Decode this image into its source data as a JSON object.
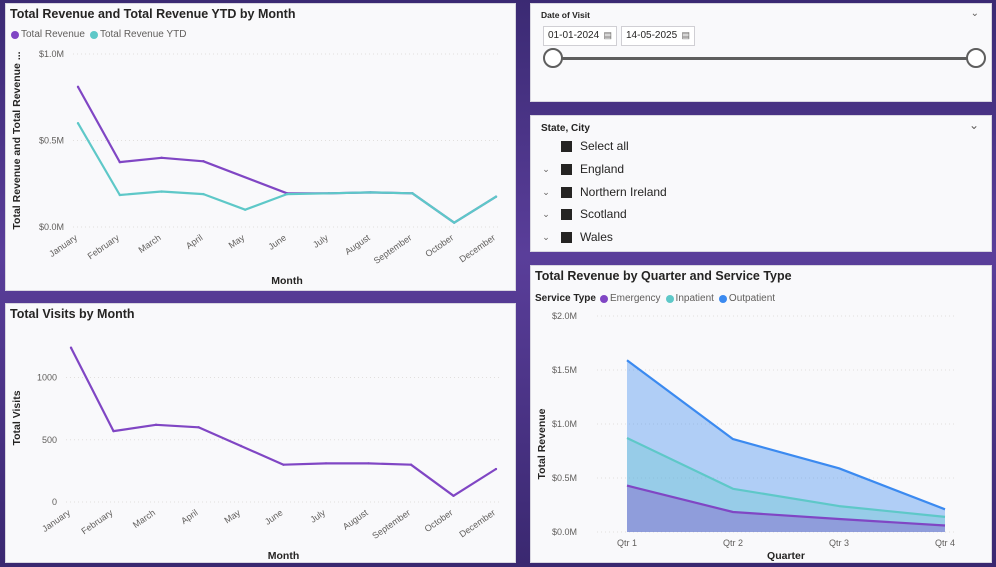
{
  "colors": {
    "purple": "#8046c4",
    "teal": "#5ec8c8",
    "blue": "#3b8af0"
  },
  "date_slicer": {
    "label": "Date of Visit",
    "start": "01-01-2024",
    "end": "14-05-2025",
    "chevron_icon": "chevron-down-icon",
    "calendar_icon": "calendar-icon"
  },
  "state_slicer": {
    "label": "State, City",
    "items": [
      {
        "label": "Select all",
        "expandable": false
      },
      {
        "label": "England",
        "expandable": true
      },
      {
        "label": "Northern Ireland",
        "expandable": true
      },
      {
        "label": "Scotland",
        "expandable": true
      },
      {
        "label": "Wales",
        "expandable": true
      }
    ]
  },
  "chart_data": [
    {
      "type": "line",
      "title": "Total Revenue and Total Revenue YTD by Month",
      "xlabel": "Month",
      "ylabel": "Total Revenue and Total Revenue ...",
      "categories": [
        "January",
        "February",
        "March",
        "April",
        "May",
        "June",
        "July",
        "August",
        "September",
        "October",
        "December"
      ],
      "y_ticks": [
        "$0.0M",
        "$0.5M",
        "$1.0M"
      ],
      "ylim": [
        0,
        1000000
      ],
      "legend_position": "top-left",
      "series": [
        {
          "name": "Total Revenue",
          "color": "#8046c4",
          "values": [
            810000,
            375000,
            400000,
            380000,
            null,
            195000,
            195000,
            200000,
            195000,
            25000,
            175000
          ]
        },
        {
          "name": "Total Revenue YTD",
          "color": "#5ec8c8",
          "values": [
            600000,
            185000,
            205000,
            190000,
            100000,
            190000,
            195000,
            200000,
            195000,
            25000,
            175000
          ]
        }
      ]
    },
    {
      "type": "line",
      "title": "Total Visits by Month",
      "xlabel": "Month",
      "ylabel": "Total Visits",
      "categories": [
        "January",
        "February",
        "March",
        "April",
        "May",
        "June",
        "July",
        "August",
        "September",
        "October",
        "December"
      ],
      "y_ticks": [
        "0",
        "500",
        "1000"
      ],
      "ylim": [
        0,
        1350
      ],
      "series": [
        {
          "name": "Total Visits",
          "color": "#8046c4",
          "values": [
            1240,
            570,
            620,
            600,
            450,
            300,
            310,
            310,
            300,
            50,
            265
          ]
        }
      ]
    },
    {
      "type": "area",
      "title": "Total Revenue by Quarter and Service Type",
      "xlabel": "Quarter",
      "ylabel": "Total Revenue",
      "legend_title": "Service Type",
      "legend_position": "top-left",
      "categories": [
        "Qtr 1",
        "Qtr 2",
        "Qtr 3",
        "Qtr 4"
      ],
      "y_ticks": [
        "$0.0M",
        "$0.5M",
        "$1.0M",
        "$1.5M",
        "$2.0M"
      ],
      "ylim": [
        0,
        2000000
      ],
      "series": [
        {
          "name": "Emergency",
          "color": "#8046c4",
          "values": [
            430000,
            185000,
            120000,
            60000
          ]
        },
        {
          "name": "Inpatient",
          "color": "#5ec8c8",
          "values": [
            870000,
            400000,
            240000,
            140000
          ]
        },
        {
          "name": "Outpatient",
          "color": "#3b8af0",
          "values": [
            1590000,
            860000,
            590000,
            210000
          ]
        }
      ]
    }
  ]
}
